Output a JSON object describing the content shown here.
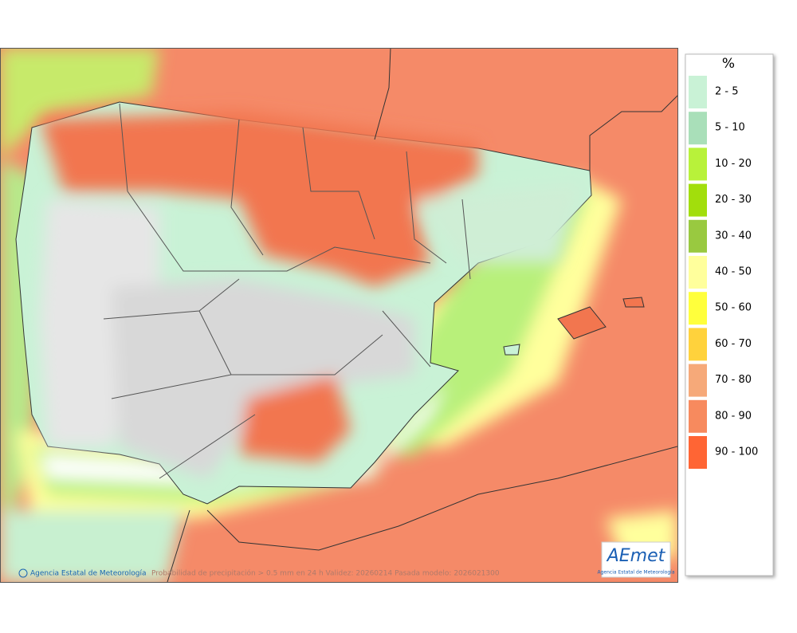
{
  "map": {
    "footer_credit": "Agencia Estatal de Meteorología",
    "footer_caption": "Probabilidad de precipitación > 0.5 mm en 24 h Validez: 20260214 Pasada modelo: 2026021300",
    "logo": {
      "name": "AEmet",
      "subtitle": "Agencia Estatal de Meteorología"
    }
  },
  "legend": {
    "title": "%",
    "items": [
      {
        "label": "2 - 5",
        "color": "#c9f2d6"
      },
      {
        "label": "5 - 10",
        "color": "#a9dfb9"
      },
      {
        "label": "10 - 20",
        "color": "#b8f23a"
      },
      {
        "label": "20 - 30",
        "color": "#a2de0c"
      },
      {
        "label": "30 - 40",
        "color": "#99c940"
      },
      {
        "label": "40 - 50",
        "color": "#ffff9c"
      },
      {
        "label": "50 - 60",
        "color": "#ffff3c"
      },
      {
        "label": "60 - 70",
        "color": "#ffd23c"
      },
      {
        "label": "70 - 80",
        "color": "#f6a979"
      },
      {
        "label": "80 - 90",
        "color": "#f78a5e"
      },
      {
        "label": "90 - 100",
        "color": "#ff6534"
      }
    ]
  }
}
